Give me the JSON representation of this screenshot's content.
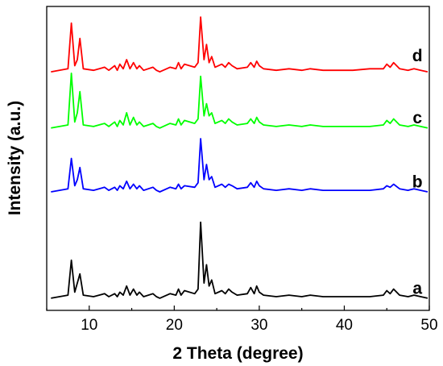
{
  "chart_data": {
    "type": "line",
    "xlabel": "2 Theta (degree)",
    "ylabel": "Intensity (a.u.)",
    "xlim": [
      5,
      50
    ],
    "ylim": [
      0,
      100
    ],
    "xticks": [
      10,
      20,
      30,
      40,
      50
    ],
    "x_tick_labels": [
      "10",
      "20",
      "30",
      "40",
      "50"
    ],
    "grid": false,
    "series": [
      {
        "name": "a",
        "color": "#000000",
        "baseline": 2,
        "x": [
          5.5,
          7.5,
          7.9,
          8.3,
          8.6,
          8.9,
          9.3,
          10.5,
          11.8,
          12.3,
          13.0,
          13.3,
          13.6,
          14.0,
          14.4,
          14.8,
          15.2,
          15.6,
          15.9,
          16.4,
          17.5,
          17.9,
          18.3,
          19.5,
          20.2,
          20.5,
          20.8,
          21.2,
          22.4,
          22.8,
          23.1,
          23.5,
          23.8,
          24.1,
          24.4,
          24.8,
          25.6,
          26.0,
          26.4,
          26.8,
          27.4,
          28.6,
          29.0,
          29.4,
          29.7,
          30.0,
          30.5,
          32.0,
          33.5,
          35.0,
          36.0,
          37.5,
          39.0,
          41.0,
          43.0,
          44.6,
          45.0,
          45.4,
          45.8,
          46.5,
          47.5,
          48.2,
          49.0,
          49.8
        ],
        "y": [
          2,
          3,
          14.5,
          4,
          7,
          10,
          3,
          2.5,
          3.5,
          2.5,
          3.5,
          2.5,
          4,
          3,
          6,
          3,
          5,
          3,
          4,
          2.5,
          3.5,
          2.5,
          2,
          3.5,
          3,
          5,
          3,
          4.5,
          3.5,
          5,
          27,
          7,
          13,
          6,
          8,
          3.5,
          4.5,
          3.5,
          5,
          4,
          3,
          3.5,
          5.5,
          3.5,
          6,
          4,
          3,
          2.5,
          3,
          2.5,
          3,
          2.5,
          2.5,
          2.5,
          2.5,
          3,
          4.5,
          3.5,
          5,
          3,
          2.5,
          3,
          2.5,
          2
        ]
      },
      {
        "name": "b",
        "color": "#0000ff",
        "baseline": 37,
        "x": [
          5.5,
          7.5,
          7.9,
          8.3,
          8.6,
          8.9,
          9.3,
          10.5,
          11.8,
          12.3,
          13.0,
          13.3,
          13.6,
          14.0,
          14.4,
          14.8,
          15.2,
          15.6,
          15.9,
          16.4,
          17.5,
          17.9,
          18.3,
          19.5,
          20.2,
          20.5,
          20.8,
          21.2,
          22.4,
          22.8,
          23.1,
          23.5,
          23.8,
          24.1,
          24.4,
          24.8,
          25.6,
          26.0,
          26.4,
          26.8,
          27.4,
          28.6,
          29.0,
          29.4,
          29.7,
          30.0,
          30.5,
          32.0,
          33.5,
          35.0,
          36.0,
          37.5,
          39.0,
          41.0,
          43.0,
          44.6,
          45.0,
          45.4,
          45.8,
          46.5,
          47.5,
          48.2,
          49.0,
          49.8
        ],
        "y": [
          2,
          3,
          13,
          4,
          6,
          10,
          3,
          2.5,
          3.5,
          2.5,
          3.5,
          2.5,
          4,
          3,
          5.5,
          3,
          4.5,
          3,
          4,
          2.5,
          3.5,
          2.5,
          2,
          3.5,
          3,
          4.5,
          3,
          4,
          3.5,
          5,
          19.5,
          6,
          11,
          6,
          7,
          3.5,
          4.5,
          3.5,
          4.5,
          4,
          3,
          3.5,
          5,
          3.5,
          5.5,
          4,
          3,
          2.5,
          3,
          2.5,
          3,
          2.5,
          2.5,
          2.5,
          2.5,
          3,
          4,
          3.5,
          4.5,
          3,
          2.5,
          3,
          2.5,
          2
        ]
      },
      {
        "name": "c",
        "color": "#00ff00",
        "baseline": 58,
        "x": [
          5.5,
          7.5,
          7.9,
          8.3,
          8.6,
          8.9,
          9.3,
          10.5,
          11.8,
          12.3,
          13.0,
          13.3,
          13.6,
          14.0,
          14.4,
          14.8,
          15.2,
          15.6,
          15.9,
          16.4,
          17.5,
          17.9,
          18.3,
          19.5,
          20.2,
          20.5,
          20.8,
          21.2,
          22.4,
          22.8,
          23.1,
          23.5,
          23.8,
          24.1,
          24.4,
          24.8,
          25.6,
          26.0,
          26.4,
          26.8,
          27.4,
          28.6,
          29.0,
          29.4,
          29.7,
          30.0,
          30.5,
          32.0,
          33.5,
          35.0,
          36.0,
          37.5,
          39.0,
          41.0,
          43.0,
          44.6,
          45.0,
          45.4,
          45.8,
          46.5,
          47.5,
          48.2,
          49.0,
          49.8
        ],
        "y": [
          2,
          3,
          20,
          4,
          7,
          14,
          3,
          2.5,
          3.5,
          2.5,
          4,
          2.5,
          4.5,
          3,
          7,
          3,
          5.5,
          3,
          4,
          2.5,
          3.5,
          2.5,
          2,
          3.5,
          3,
          5,
          3,
          4.5,
          3.5,
          5,
          19,
          6,
          10,
          6,
          7,
          3.5,
          4.5,
          3.5,
          5,
          4,
          3,
          3.5,
          5,
          3.5,
          5.5,
          4,
          3,
          2.5,
          3,
          2.5,
          3,
          2.5,
          2.5,
          2.5,
          2.5,
          3,
          4.5,
          3.5,
          5,
          3,
          2.5,
          3,
          2.5,
          2
        ]
      },
      {
        "name": "d",
        "color": "#ff0000",
        "baseline": 78.5,
        "x": [
          5.5,
          7.5,
          7.9,
          8.3,
          8.6,
          8.9,
          9.3,
          10.5,
          11.8,
          12.3,
          13.0,
          13.3,
          13.6,
          14.0,
          14.4,
          14.8,
          15.2,
          15.6,
          15.9,
          16.4,
          17.5,
          17.9,
          18.3,
          19.5,
          20.2,
          20.5,
          20.8,
          21.2,
          22.4,
          22.8,
          23.1,
          23.5,
          23.8,
          24.1,
          24.4,
          24.8,
          25.6,
          26.0,
          26.4,
          26.8,
          27.4,
          28.6,
          29.0,
          29.4,
          29.7,
          30.0,
          30.5,
          32.0,
          33.5,
          35.0,
          36.0,
          37.5,
          39.0,
          41.0,
          43.0,
          44.6,
          45.0,
          45.4,
          45.8,
          46.5,
          47.5,
          48.2,
          49.0,
          49.8
        ],
        "y": [
          0,
          1,
          16,
          2,
          4,
          11,
          1,
          0.5,
          1.5,
          0.5,
          2,
          0.5,
          2.5,
          1,
          4,
          1,
          3,
          1,
          2,
          0.5,
          1.5,
          0.5,
          0,
          1.5,
          1,
          3,
          1,
          2.5,
          1.5,
          3,
          18,
          4,
          9,
          3,
          5,
          1.5,
          2.5,
          1.5,
          3,
          2,
          1,
          1.5,
          3,
          1.5,
          3.5,
          2,
          1,
          0.5,
          1,
          0.5,
          1,
          0.5,
          0.5,
          0.5,
          1,
          1,
          2.5,
          1.5,
          3,
          1,
          0.5,
          1,
          0.5,
          0
        ]
      }
    ]
  }
}
